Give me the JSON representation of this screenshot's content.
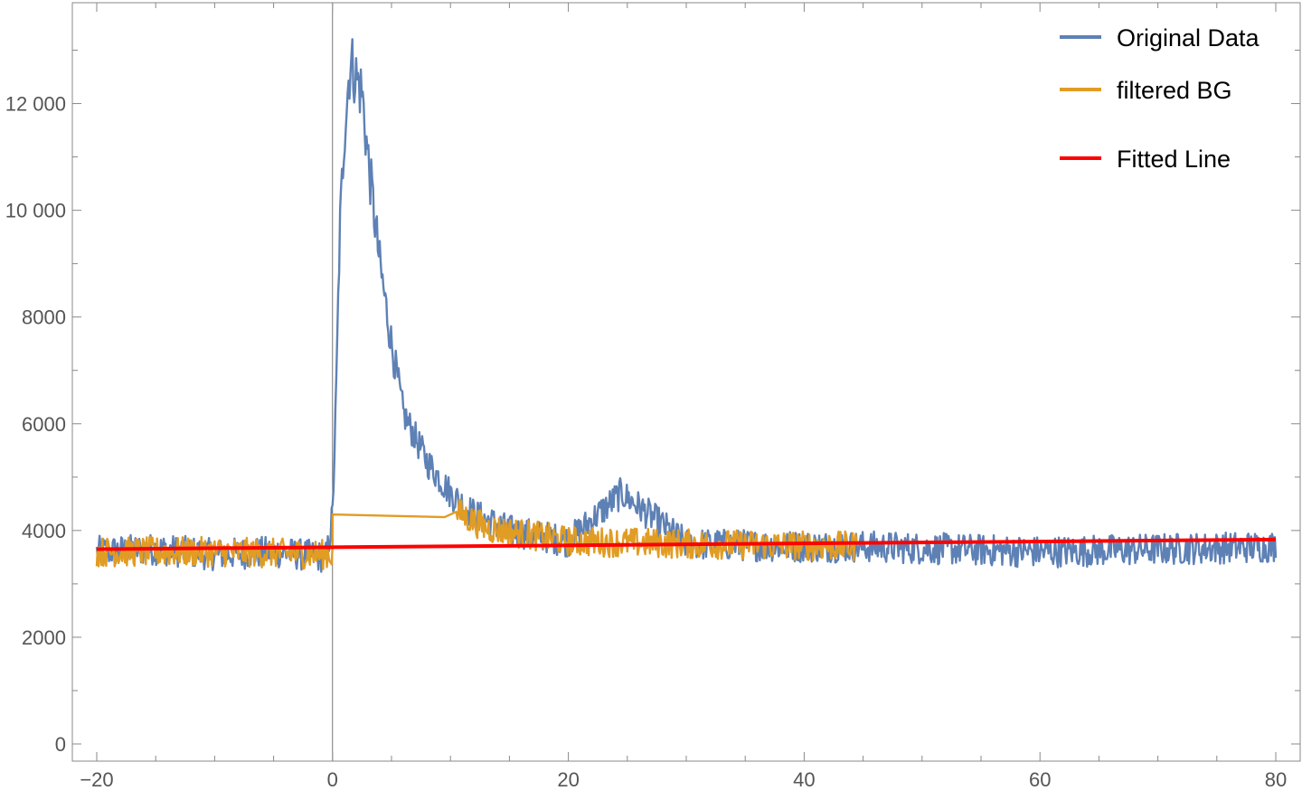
{
  "chart_data": {
    "type": "line",
    "title": "",
    "xlabel": "",
    "ylabel": "",
    "xlim": [
      -20,
      80
    ],
    "ylim": [
      0,
      13500
    ],
    "x_ticks": [
      -20,
      0,
      20,
      40,
      60,
      80
    ],
    "x_tick_labels": [
      "−20",
      "0",
      "20",
      "40",
      "60",
      "80"
    ],
    "y_ticks": [
      0,
      2000,
      4000,
      6000,
      8000,
      10000,
      12000
    ],
    "y_tick_labels": [
      "0",
      "2000",
      "4000",
      "6000",
      "8000",
      "10 000",
      "12 000"
    ],
    "frame": true,
    "grid": false,
    "legend_position": "top-right",
    "colors": {
      "original": "#5e81b5",
      "filtered": "#e19c24",
      "fitted": "#ff0000",
      "axis": "#888888",
      "tick_label": "#555555"
    },
    "legend": [
      {
        "label": "Original Data",
        "color": "#5e81b5"
      },
      {
        "label": "filtered BG",
        "color": "#e19c24"
      },
      {
        "label": "Fitted Line",
        "color": "#ff0000"
      }
    ],
    "series": [
      {
        "name": "Original Data",
        "color": "#5e81b5",
        "description_points": [
          [
            -20,
            3600
          ],
          [
            -15,
            3650
          ],
          [
            -10,
            3550
          ],
          [
            -5,
            3600
          ],
          [
            -0.5,
            3500
          ],
          [
            0,
            4300
          ],
          [
            0.3,
            6500
          ],
          [
            0.6,
            9500
          ],
          [
            1,
            11500
          ],
          [
            1.5,
            12800
          ],
          [
            2.5,
            12200
          ],
          [
            3,
            11000
          ],
          [
            4,
            9000
          ],
          [
            5,
            7500
          ],
          [
            6,
            6200
          ],
          [
            8,
            5300
          ],
          [
            10,
            4700
          ],
          [
            12,
            4300
          ],
          [
            15,
            4000
          ],
          [
            20,
            3800
          ],
          [
            24.5,
            4700
          ],
          [
            30,
            3750
          ],
          [
            40,
            3700
          ],
          [
            45,
            3700
          ],
          [
            60,
            3600
          ],
          [
            70,
            3650
          ],
          [
            80,
            3700
          ]
        ],
        "noise_amplitude": 300
      },
      {
        "name": "filtered BG",
        "color": "#e19c24",
        "description_points": [
          [
            -20,
            3600
          ],
          [
            -10,
            3600
          ],
          [
            0,
            3550
          ],
          [
            0,
            4300
          ],
          [
            9.5,
            4250
          ],
          [
            10.5,
            4350
          ],
          [
            13,
            4050
          ],
          [
            20,
            3800
          ],
          [
            30,
            3750
          ],
          [
            44.5,
            3700
          ]
        ],
        "noise_amplitude": 280
      },
      {
        "name": "Fitted Line",
        "color": "#ff0000",
        "x": [
          -20,
          80
        ],
        "y": [
          3650,
          3830
        ]
      }
    ],
    "annotations": []
  }
}
